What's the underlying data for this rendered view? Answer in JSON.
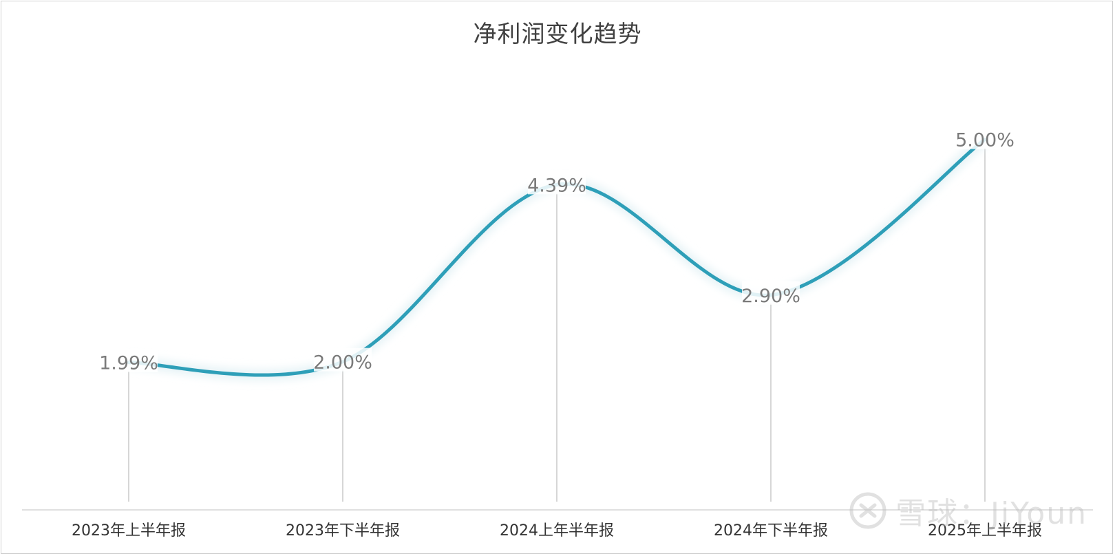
{
  "chart_data": {
    "type": "line",
    "title": "净利润变化趋势",
    "categories": [
      "2023年上半年报",
      "2023年下半年报",
      "2024上年半年报",
      "2024年下半年报",
      "2025年上半年报"
    ],
    "values": [
      1.99,
      2.0,
      4.39,
      2.9,
      5.0
    ],
    "data_labels": [
      "1.99%",
      "2.00%",
      "4.39%",
      "2.90%",
      "5.00%"
    ],
    "ylim": [
      0,
      6
    ],
    "grid": false,
    "line_color": "#2e9fb8",
    "drop_line_color": "#c8c8c8"
  },
  "watermark": {
    "text": "雪球：JiYoun"
  }
}
